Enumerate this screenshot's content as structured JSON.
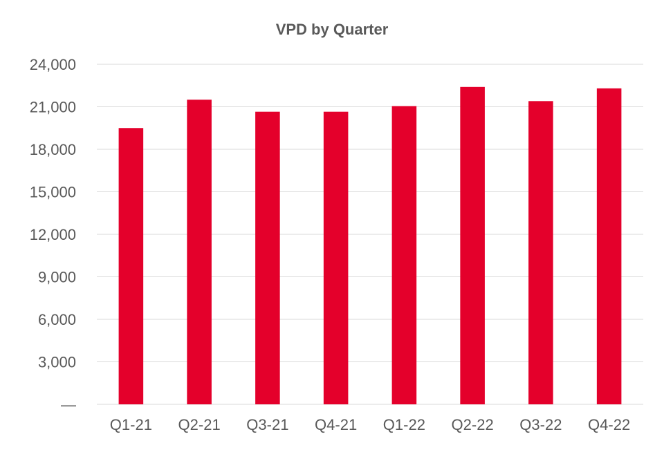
{
  "chart_data": {
    "type": "bar",
    "title": "VPD by Quarter",
    "xlabel": "",
    "ylabel": "",
    "categories": [
      "Q1-21",
      "Q2-21",
      "Q3-21",
      "Q4-21",
      "Q1-22",
      "Q2-22",
      "Q3-22",
      "Q4-22"
    ],
    "values": [
      19500,
      21500,
      20650,
      20650,
      21050,
      22400,
      21400,
      22300
    ],
    "ylim": [
      0,
      24000
    ],
    "yticks": [
      0,
      3000,
      6000,
      9000,
      12000,
      15000,
      18000,
      21000,
      24000
    ],
    "ytick_labels": [
      "—",
      "3,000",
      "6,000",
      "9,000",
      "12,000",
      "15,000",
      "18,000",
      "21,000",
      "24,000"
    ],
    "grid": true,
    "legend": "none",
    "bar_color": "#e4002b"
  }
}
